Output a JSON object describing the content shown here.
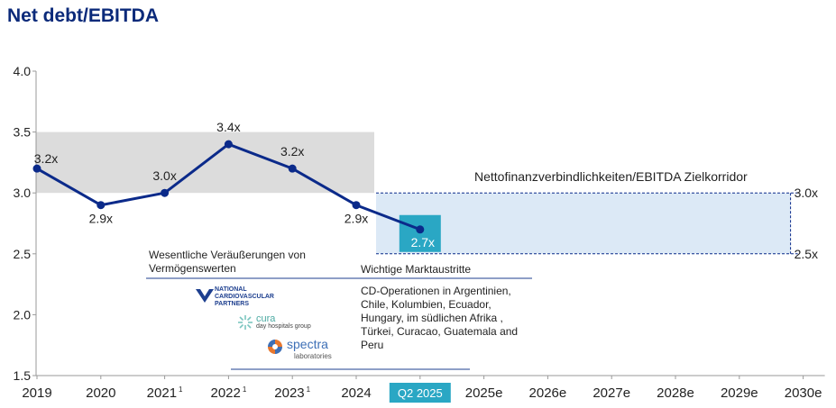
{
  "title": "Net debt/EBITDA",
  "chart_data": {
    "type": "line",
    "title": "Net debt/EBITDA",
    "categories": [
      "2019",
      "2020",
      "2021",
      "2022",
      "2023",
      "2024",
      "Q2 2025",
      "2025e",
      "2026e",
      "2027e",
      "2028e",
      "2029e",
      "2030e"
    ],
    "category_superscripts": [
      "",
      "",
      "1",
      "1",
      "1",
      "",
      "",
      "",
      "",
      "",
      "",
      "",
      ""
    ],
    "series": [
      {
        "values": [
          3.2,
          2.9,
          3.0,
          3.4,
          3.2,
          2.9,
          2.7,
          null,
          null,
          null,
          null,
          null,
          null
        ]
      }
    ],
    "data_labels": [
      "3.2x",
      "2.9x",
      "3.0x",
      "3.4x",
      "3.2x",
      "2.9x",
      "2.7x",
      "",
      "",
      "",
      "",
      "",
      ""
    ],
    "y_ticks": [
      "4.0",
      "3.5",
      "3.0",
      "2.5",
      "2.0",
      "1.5"
    ],
    "ylim": [
      1.5,
      4.0
    ],
    "grid": false,
    "historic_band": [
      3.0,
      3.5
    ],
    "target_corridor": {
      "label": "Nettofinanzverbindlichkeiten/EBITDA  Zielkorridor",
      "low": 2.5,
      "high": 3.0,
      "low_label": "2.5x",
      "high_label": "3.0x"
    },
    "colors": {
      "line": "#0b2a8a",
      "title": "#0b2a7a",
      "highlight": "#2aa7c4",
      "band_grey": "#dcdcdc",
      "band_blue": "#dce9f6"
    }
  },
  "annotations": {
    "divestments_title": "Wesentliche Veräußerungen  von Vermögenswerten",
    "exits_title": "Wichtige Marktaustritte",
    "exits_text": "CD-Operationen  in Argentinien, Chile, Kolumbien, Ecuador, Hungary, im südlichen Afrika , Türkei, Curacao, Guatemala and Peru"
  },
  "logos": {
    "ncp_line1": "NATIONAL",
    "ncp_line2": "CARDIOVASCULAR",
    "ncp_line3": "PARTNERS",
    "cura_name": "cura",
    "cura_sub": "day hospitals group",
    "spectra_name": "spectra",
    "spectra_sub": "laboratories"
  }
}
